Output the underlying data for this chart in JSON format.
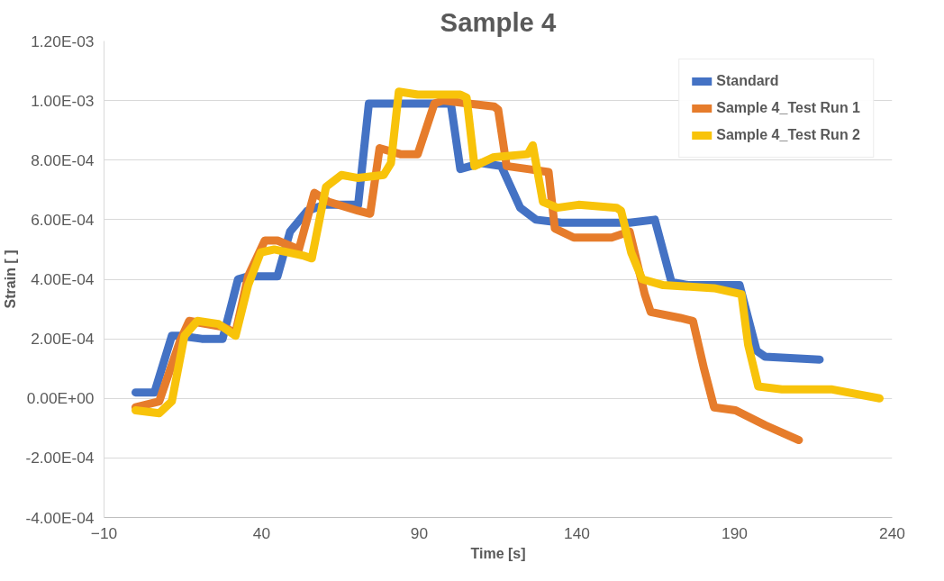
{
  "chart_data": {
    "type": "line",
    "title": "Sample 4",
    "xlabel": "Time [s]",
    "ylabel": "Strain [ ]",
    "xlim": [
      -10,
      240
    ],
    "xticks": [
      -10,
      40,
      90,
      140,
      190,
      240
    ],
    "ylim": [
      -0.0004,
      0.0012
    ],
    "yticks": [
      {
        "value": -0.0004,
        "label": "-4.00E-04"
      },
      {
        "value": -0.0002,
        "label": "-2.00E-04"
      },
      {
        "value": 0,
        "label": "0.00E+00"
      },
      {
        "value": 0.0002,
        "label": "2.00E-04"
      },
      {
        "value": 0.0004,
        "label": "4.00E-04"
      },
      {
        "value": 0.0006,
        "label": "6.00E-04"
      },
      {
        "value": 0.0008,
        "label": "8.00E-04"
      },
      {
        "value": 0.001,
        "label": "1.00E-03"
      },
      {
        "value": 0.0012,
        "label": "1.20E-03"
      }
    ],
    "grid": "y",
    "legend": "top right",
    "series": [
      {
        "name": "Standard",
        "color": "#4472c4",
        "x": [
          0,
          6,
          11.5,
          14,
          21,
          27.6,
          32.5,
          35.7,
          45,
          49,
          54.5,
          60,
          70.6,
          74,
          77,
          89.5,
          100,
          103,
          109.6,
          116,
          122,
          127,
          135,
          156.7,
          164.7,
          170,
          175.5,
          191.6,
          197,
          199.7,
          217
        ],
        "values": [
          2e-05,
          2e-05,
          0.00021,
          0.00021,
          0.0002,
          0.0002,
          0.0004,
          0.00041,
          0.00041,
          0.00056,
          0.00063,
          0.00065,
          0.00065,
          0.00099,
          0.00099,
          0.00099,
          0.00099,
          0.00077,
          0.00079,
          0.00078,
          0.00064,
          0.0006,
          0.00059,
          0.00059,
          0.0006,
          0.00039,
          0.00038,
          0.00038,
          0.00016,
          0.00014,
          0.00013
        ]
      },
      {
        "name": "Sample 4_Test Run 1",
        "color": "#e67c2b",
        "x": [
          0,
          7.5,
          14,
          17,
          27.6,
          31.7,
          35.7,
          41,
          45,
          51.8,
          56.7,
          61.2,
          70.6,
          74.4,
          77.4,
          84,
          89.5,
          94.8,
          97.5,
          105.6,
          113.7,
          115,
          117.7,
          124.4,
          131,
          133,
          139,
          151,
          156.7,
          161.5,
          163.4,
          172.8,
          176.8,
          180.3,
          183.5,
          190.3,
          199.7,
          210.4
        ],
        "values": [
          -3e-05,
          -1e-05,
          0.00019,
          0.00026,
          0.00024,
          0.00022,
          0.00041,
          0.00053,
          0.00053,
          0.0005,
          0.00069,
          0.00066,
          0.00063,
          0.00062,
          0.00084,
          0.00082,
          0.00082,
          0.00099,
          0.001,
          0.00099,
          0.00098,
          0.00097,
          0.00078,
          0.00077,
          0.00076,
          0.00057,
          0.00054,
          0.00054,
          0.00056,
          0.00035,
          0.00029,
          0.00027,
          0.00026,
          0.0001,
          -3e-05,
          -4e-05,
          -9e-05,
          -0.00014
        ]
      },
      {
        "name": "Sample 4_Test Run 2",
        "color": "#f8c30a",
        "x": [
          0,
          7.5,
          11.5,
          15.5,
          19.6,
          26.3,
          31.7,
          35.7,
          39.7,
          44,
          53,
          55.9,
          60.4,
          65.3,
          70.6,
          78.7,
          81,
          83.5,
          89.5,
          103,
          105,
          107.5,
          113.7,
          124.4,
          126,
          129.2,
          133.8,
          140.5,
          152.6,
          154,
          157.2,
          160.7,
          167.4,
          183.5,
          192.2,
          194.3,
          197.5,
          205,
          221,
          236
        ],
        "values": [
          -4e-05,
          -5e-05,
          -1e-05,
          0.00021,
          0.00026,
          0.00025,
          0.00021,
          0.00038,
          0.00049,
          0.0005,
          0.00048,
          0.00047,
          0.00071,
          0.00075,
          0.00074,
          0.00075,
          0.00079,
          0.00103,
          0.00102,
          0.00102,
          0.00101,
          0.00078,
          0.00081,
          0.00082,
          0.00085,
          0.00066,
          0.00064,
          0.00065,
          0.00064,
          0.00063,
          0.00049,
          0.0004,
          0.00038,
          0.00037,
          0.00035,
          0.00018,
          4e-05,
          3e-05,
          3e-05,
          0
        ]
      }
    ]
  }
}
